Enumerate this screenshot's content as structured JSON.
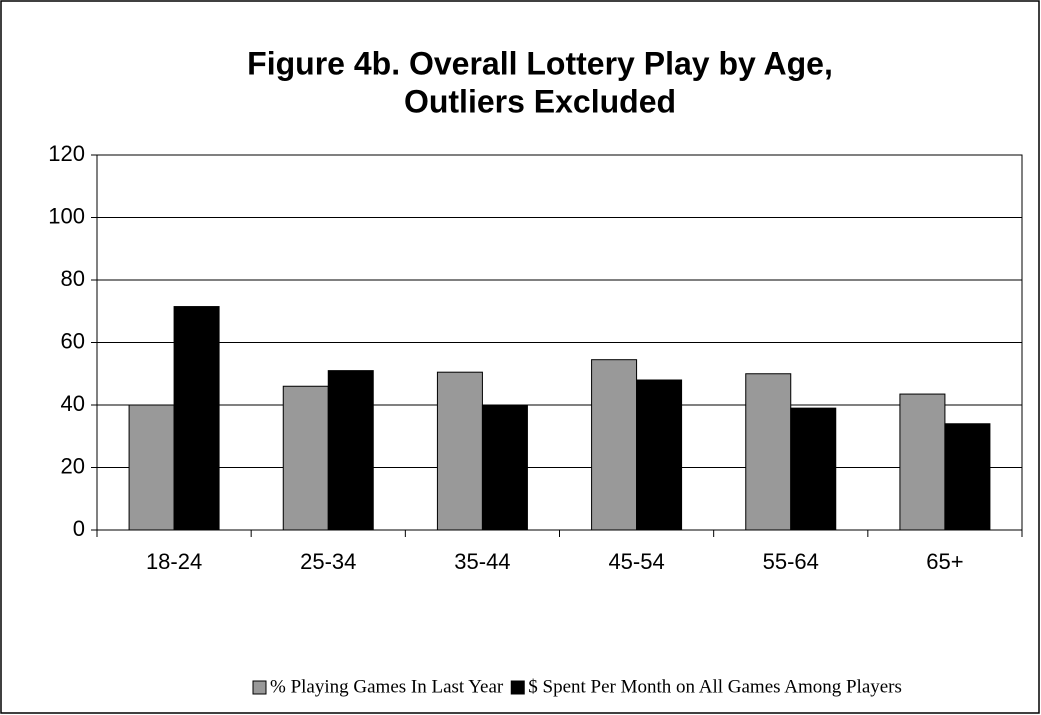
{
  "chart_data": {
    "type": "bar",
    "title": [
      "Figure 4b.  Overall Lottery Play by Age,",
      "Outliers Excluded"
    ],
    "categories": [
      "18-24",
      "25-34",
      "35-44",
      "45-54",
      "55-64",
      "65+"
    ],
    "series": [
      {
        "name": "% Playing Games In Last Year",
        "color": "#999999",
        "values": [
          40,
          46,
          50.5,
          54.5,
          50,
          43.5
        ]
      },
      {
        "name": "$ Spent Per Month on All Games Among Players",
        "color": "#000000",
        "values": [
          71.5,
          51,
          40,
          48,
          39,
          34
        ]
      }
    ],
    "ylim": [
      0,
      120
    ],
    "yticks": [
      0,
      20,
      40,
      60,
      80,
      100,
      120
    ],
    "grid": true,
    "legend": "bottom"
  }
}
